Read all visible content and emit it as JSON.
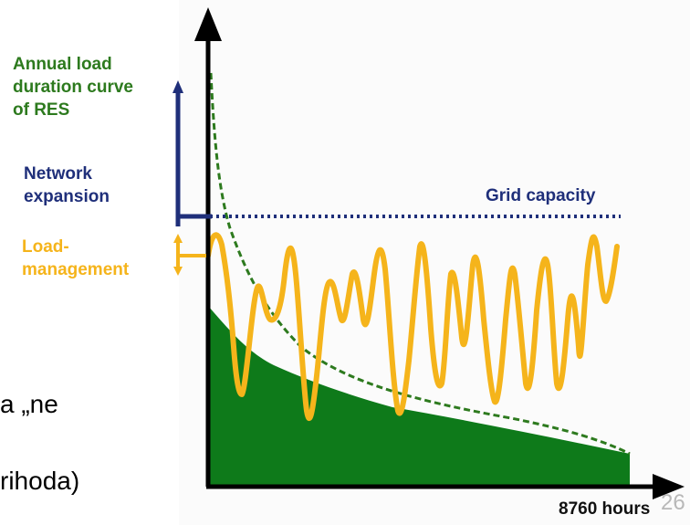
{
  "labels": {
    "res_curve": "Annual load\nduration curve\nof RES",
    "network_expansion": "Network\nexpansion",
    "load_management": "Load-\nmanagement",
    "grid_capacity": "Grid capacity",
    "hours": "8760 hours"
  },
  "slide_text": {
    "fragment_1": "a „ne",
    "fragment_2": "rihoda)"
  },
  "page_number": "26",
  "colors": {
    "res_green": "#2d7a1e",
    "fill_green": "#0e7a1a",
    "network_blue": "#1f2f7a",
    "load_orange": "#f5b41b",
    "axis": "#000000"
  }
}
